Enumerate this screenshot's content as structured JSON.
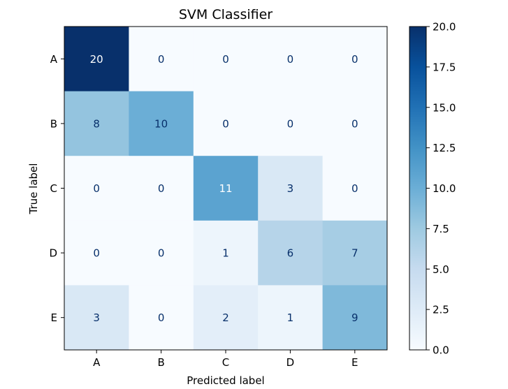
{
  "chart_data": {
    "type": "heatmap",
    "title": "SVM Classifier",
    "xlabel": "Predicted label",
    "ylabel": "True label",
    "x_categories": [
      "A",
      "B",
      "C",
      "D",
      "E"
    ],
    "y_categories": [
      "A",
      "B",
      "C",
      "D",
      "E"
    ],
    "values": [
      [
        20,
        0,
        0,
        0,
        0
      ],
      [
        8,
        10,
        0,
        0,
        0
      ],
      [
        0,
        0,
        11,
        3,
        0
      ],
      [
        0,
        0,
        1,
        6,
        7
      ],
      [
        3,
        0,
        2,
        1,
        9
      ]
    ],
    "colormap": "Blues",
    "vmin": 0,
    "vmax": 20,
    "colorbar_ticks": [
      "0.0",
      "2.5",
      "5.0",
      "7.5",
      "10.0",
      "12.5",
      "15.0",
      "17.5",
      "20.0"
    ],
    "text_colors": {
      "light": "#ffffff",
      "dark": "#08306b"
    }
  }
}
